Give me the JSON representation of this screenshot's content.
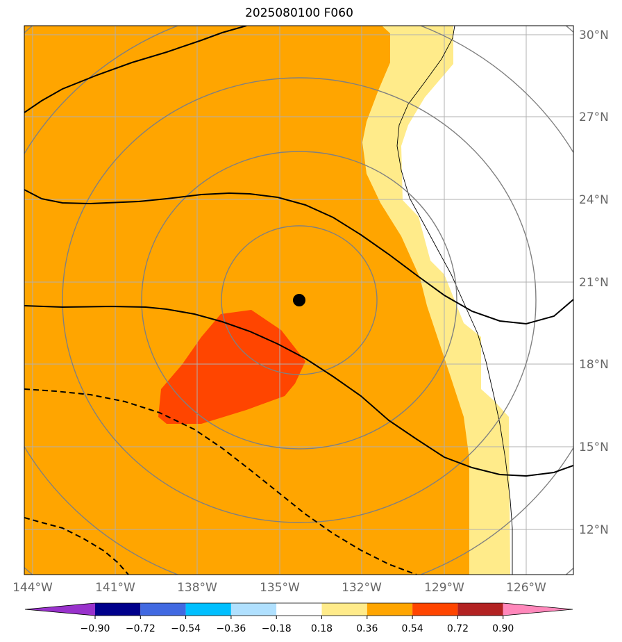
{
  "title": "2025080100 F060",
  "map": {
    "lon_range": [
      -144.2,
      -124.2
    ],
    "lat_range": [
      10.4,
      30.4
    ],
    "lat_ticks": [
      {
        "value": 30,
        "label": "30°N"
      },
      {
        "value": 27,
        "label": "27°N"
      },
      {
        "value": 24,
        "label": "24°N"
      },
      {
        "value": 21,
        "label": "21°N"
      },
      {
        "value": 18,
        "label": "18°N"
      },
      {
        "value": 15,
        "label": "15°N"
      },
      {
        "value": 12,
        "label": "12°N"
      }
    ],
    "lon_ticks": [
      {
        "value": -144,
        "label": "144°W"
      },
      {
        "value": -141,
        "label": "141°W"
      },
      {
        "value": -138,
        "label": "138°W"
      },
      {
        "value": -135,
        "label": "135°W"
      },
      {
        "value": -132,
        "label": "132°W"
      },
      {
        "value": -129,
        "label": "129°W"
      },
      {
        "value": -126,
        "label": "126°W"
      }
    ],
    "storm_center": {
      "lon": -134.3,
      "lat": 20.3
    },
    "colors": {
      "fill_018_036": "#ffeb8a",
      "fill_036_054": "#ffa500",
      "fill_054_072": "#ff4500",
      "gray_contour": "#808080",
      "black_contour": "#000000",
      "grid": "#b0b0b0"
    }
  },
  "colorbar": {
    "colors": [
      "#9932cc",
      "#00008b",
      "#4169e1",
      "#00bfff",
      "#b0e0fe",
      "#ffffff",
      "#ffeb8a",
      "#ffa500",
      "#ff4500",
      "#b22222",
      "#ff88bb"
    ],
    "tick_labels": [
      "−0.90",
      "−0.72",
      "−0.54",
      "−0.36",
      "−0.18",
      "0.18",
      "0.36",
      "0.54",
      "0.72",
      "0.90"
    ]
  }
}
